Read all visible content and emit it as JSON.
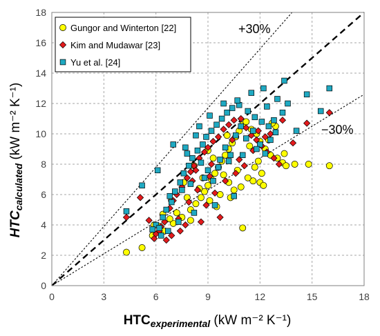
{
  "chart_data": {
    "type": "scatter",
    "title": "",
    "xlabel": {
      "main": "HTC",
      "sub": "experimental",
      "unit": " (kW m⁻² K⁻¹)"
    },
    "ylabel": {
      "main": "HTC",
      "sub": "calculated",
      "unit": " (kW m⁻² K⁻¹)"
    },
    "xlim": [
      0,
      18
    ],
    "ylim": [
      0,
      18
    ],
    "xticks": [
      "0",
      "3",
      "6",
      "9",
      "12",
      "15",
      "18"
    ],
    "yticks": [
      "0",
      "2",
      "4",
      "6",
      "8",
      "10",
      "12",
      "14",
      "16",
      "18"
    ],
    "grid": true,
    "legend_position": "top-left",
    "reference_lines": [
      {
        "label": "",
        "slope": 1.0,
        "style": "dashed-bold"
      },
      {
        "label": "+30%",
        "slope": 1.3,
        "style": "dotted"
      },
      {
        "label": "−30%",
        "slope": 0.7,
        "style": "dotted"
      }
    ],
    "series": [
      {
        "name": "Gungor and Winterton [22]",
        "marker": "circle",
        "color": "#ffff00",
        "points": [
          [
            4.3,
            2.2
          ],
          [
            5.2,
            2.5
          ],
          [
            5.8,
            3.3
          ],
          [
            6.5,
            3.6
          ],
          [
            7.0,
            4.1
          ],
          [
            7.5,
            4.5
          ],
          [
            8.0,
            5.0
          ],
          [
            8.3,
            5.4
          ],
          [
            8.6,
            5.8
          ],
          [
            8.8,
            6.2
          ],
          [
            9.0,
            6.6
          ],
          [
            9.2,
            7.0
          ],
          [
            9.4,
            7.4
          ],
          [
            9.6,
            7.8
          ],
          [
            9.8,
            8.2
          ],
          [
            10.0,
            8.6
          ],
          [
            10.2,
            9.0
          ],
          [
            10.4,
            9.4
          ],
          [
            10.6,
            9.8
          ],
          [
            10.8,
            10.2
          ],
          [
            11.0,
            10.6
          ],
          [
            11.2,
            10.8
          ],
          [
            11.5,
            10.3
          ],
          [
            11.8,
            10.0
          ],
          [
            12.0,
            9.5
          ],
          [
            12.3,
            9.0
          ],
          [
            12.6,
            8.6
          ],
          [
            13.0,
            8.4
          ],
          [
            13.3,
            8.1
          ],
          [
            13.5,
            7.9
          ],
          [
            14.0,
            8.0
          ],
          [
            14.8,
            8.0
          ],
          [
            16.0,
            7.9
          ],
          [
            12.0,
            6.8
          ],
          [
            12.2,
            6.6
          ],
          [
            11.6,
            6.9
          ],
          [
            11.3,
            7.1
          ],
          [
            10.9,
            6.5
          ],
          [
            10.5,
            6.3
          ],
          [
            10.2,
            6.8
          ],
          [
            9.7,
            6.0
          ],
          [
            9.5,
            5.2
          ],
          [
            9.1,
            5.6
          ],
          [
            11.0,
            3.8
          ],
          [
            8.0,
            4.3
          ],
          [
            7.8,
            5.8
          ],
          [
            7.2,
            4.8
          ],
          [
            6.8,
            4.4
          ],
          [
            6.2,
            3.9
          ],
          [
            8.5,
            6.4
          ],
          [
            9.9,
            7.3
          ],
          [
            10.7,
            7.6
          ],
          [
            11.9,
            8.2
          ],
          [
            12.5,
            9.6
          ],
          [
            12.9,
            10.5
          ],
          [
            12.7,
            10.7
          ],
          [
            11.4,
            9.2
          ],
          [
            10.1,
            9.9
          ],
          [
            9.3,
            8.4
          ],
          [
            8.7,
            7.1
          ],
          [
            13.4,
            8.7
          ],
          [
            12.1,
            7.4
          ],
          [
            11.7,
            7.8
          ],
          [
            10.3,
            5.8
          ],
          [
            9.0,
            8.9
          ],
          [
            8.2,
            7.9
          ],
          [
            7.6,
            6.8
          ],
          [
            6.9,
            5.6
          ],
          [
            6.4,
            4.7
          ],
          [
            5.9,
            4.0
          ]
        ]
      },
      {
        "name": "Kim and Mudawar [23]",
        "marker": "diamond",
        "color": "#e41a1c",
        "points": [
          [
            4.3,
            4.5
          ],
          [
            5.1,
            5.8
          ],
          [
            5.6,
            4.3
          ],
          [
            6.0,
            3.4
          ],
          [
            6.2,
            3.6
          ],
          [
            6.5,
            4.2
          ],
          [
            6.8,
            5.1
          ],
          [
            7.0,
            5.6
          ],
          [
            7.2,
            6.0
          ],
          [
            7.5,
            6.5
          ],
          [
            7.8,
            7.1
          ],
          [
            8.0,
            7.5
          ],
          [
            8.2,
            7.9
          ],
          [
            8.5,
            8.4
          ],
          [
            8.8,
            8.8
          ],
          [
            9.0,
            9.1
          ],
          [
            9.3,
            9.5
          ],
          [
            9.6,
            9.8
          ],
          [
            9.9,
            10.3
          ],
          [
            10.2,
            10.6
          ],
          [
            10.5,
            10.9
          ],
          [
            10.9,
            11.0
          ],
          [
            11.2,
            10.4
          ],
          [
            11.5,
            9.9
          ],
          [
            11.8,
            9.6
          ],
          [
            12.1,
            9.2
          ],
          [
            12.4,
            8.8
          ],
          [
            12.8,
            8.4
          ],
          [
            13.1,
            8.0
          ],
          [
            13.3,
            10.9
          ],
          [
            13.9,
            9.4
          ],
          [
            14.7,
            10.7
          ],
          [
            16.0,
            11.4
          ],
          [
            7.3,
            4.4
          ],
          [
            7.7,
            4.0
          ],
          [
            8.6,
            4.2
          ],
          [
            8.9,
            5.3
          ],
          [
            9.4,
            6.1
          ],
          [
            10.0,
            6.9
          ],
          [
            10.6,
            7.4
          ],
          [
            11.1,
            7.9
          ],
          [
            6.6,
            3.0
          ],
          [
            6.3,
            3.9
          ],
          [
            5.9,
            3.1
          ],
          [
            7.9,
            5.5
          ],
          [
            8.4,
            6.3
          ],
          [
            9.7,
            4.5
          ],
          [
            10.8,
            8.3
          ],
          [
            11.6,
            8.9
          ],
          [
            12.3,
            9.8
          ],
          [
            9.2,
            8.0
          ],
          [
            8.1,
            6.9
          ],
          [
            7.4,
            3.6
          ],
          [
            6.9,
            3.3
          ],
          [
            12.6,
            10.0
          ],
          [
            11.9,
            10.2
          ],
          [
            10.4,
            9.6
          ],
          [
            9.1,
            7.2
          ],
          [
            8.3,
            7.6
          ]
        ]
      },
      {
        "name": "Yu et al. [24]",
        "marker": "square",
        "color": "#1fa9c2",
        "points": [
          [
            4.3,
            4.9
          ],
          [
            5.2,
            6.6
          ],
          [
            6.0,
            4.0
          ],
          [
            6.2,
            3.8
          ],
          [
            6.4,
            4.5
          ],
          [
            6.6,
            5.0
          ],
          [
            6.9,
            5.5
          ],
          [
            7.1,
            6.2
          ],
          [
            7.4,
            6.8
          ],
          [
            7.6,
            7.4
          ],
          [
            7.9,
            7.9
          ],
          [
            8.1,
            8.4
          ],
          [
            8.4,
            8.9
          ],
          [
            8.7,
            9.3
          ],
          [
            8.9,
            9.8
          ],
          [
            9.2,
            10.2
          ],
          [
            9.5,
            10.6
          ],
          [
            9.8,
            11.0
          ],
          [
            10.1,
            11.4
          ],
          [
            10.4,
            11.7
          ],
          [
            10.8,
            11.9
          ],
          [
            11.3,
            11.5
          ],
          [
            11.7,
            11.1
          ],
          [
            12.1,
            10.8
          ],
          [
            12.5,
            10.5
          ],
          [
            12.9,
            10.1
          ],
          [
            13.3,
            11.4
          ],
          [
            13.6,
            12.0
          ],
          [
            13.4,
            13.5
          ],
          [
            14.7,
            12.6
          ],
          [
            16.0,
            13.0
          ],
          [
            15.5,
            11.5
          ],
          [
            14.1,
            10.2
          ],
          [
            6.1,
            7.6
          ],
          [
            7.0,
            9.3
          ],
          [
            7.8,
            8.7
          ],
          [
            8.3,
            9.9
          ],
          [
            8.6,
            8.1
          ],
          [
            9.0,
            7.6
          ],
          [
            9.3,
            6.9
          ],
          [
            9.7,
            8.3
          ],
          [
            10.0,
            9.1
          ],
          [
            10.3,
            8.6
          ],
          [
            10.6,
            9.9
          ],
          [
            10.9,
            10.5
          ],
          [
            11.2,
            9.7
          ],
          [
            11.6,
            10.2
          ],
          [
            12.0,
            9.3
          ],
          [
            12.4,
            11.8
          ],
          [
            12.8,
            10.9
          ],
          [
            10.5,
            5.9
          ],
          [
            9.4,
            5.3
          ],
          [
            8.2,
            4.8
          ],
          [
            7.3,
            4.2
          ],
          [
            6.7,
            3.6
          ],
          [
            6.3,
            3.3
          ],
          [
            5.8,
            3.7
          ],
          [
            6.8,
            5.9
          ],
          [
            7.5,
            6.3
          ],
          [
            8.0,
            6.7
          ],
          [
            8.8,
            7.1
          ],
          [
            9.6,
            7.8
          ],
          [
            10.2,
            8.2
          ],
          [
            11.0,
            8.6
          ],
          [
            11.8,
            9.0
          ],
          [
            12.6,
            9.6
          ],
          [
            9.9,
            12.0
          ],
          [
            10.7,
            12.2
          ],
          [
            11.5,
            12.7
          ],
          [
            12.2,
            13.0
          ],
          [
            8.5,
            10.5
          ],
          [
            9.1,
            11.2
          ],
          [
            7.7,
            9.1
          ],
          [
            13.0,
            12.3
          ],
          [
            12.3,
            8.7
          ]
        ]
      }
    ]
  }
}
